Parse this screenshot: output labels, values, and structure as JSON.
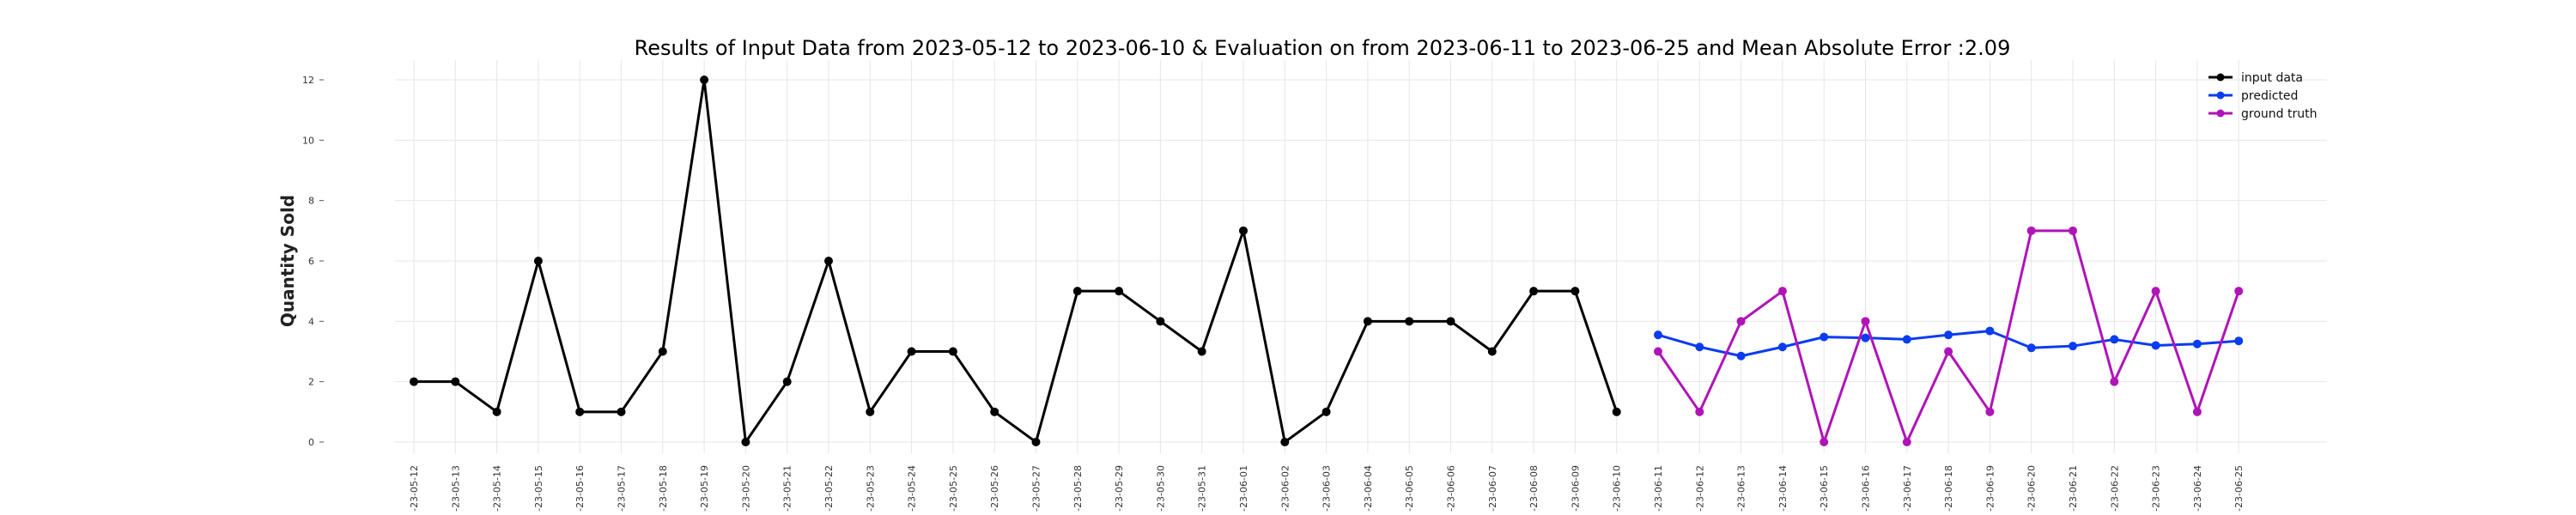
{
  "chart_data": {
    "type": "line",
    "title": "Results of Input Data from 2023-05-12 to 2023-06-10 & Evaluation on from 2023-06-11 to 2023-06-25 and Mean Absolute Error  :2.09",
    "ylabel": "Quantity Sold",
    "xlabel": "",
    "ylim": [
      0,
      12
    ],
    "yticks": [
      0,
      2,
      4,
      6,
      8,
      10,
      12
    ],
    "grid": true,
    "legend_position": "top-right",
    "x": [
      "2023-05-12",
      "2023-05-13",
      "2023-05-14",
      "2023-05-15",
      "2023-05-16",
      "2023-05-17",
      "2023-05-18",
      "2023-05-19",
      "2023-05-20",
      "2023-05-21",
      "2023-05-22",
      "2023-05-23",
      "2023-05-24",
      "2023-05-25",
      "2023-05-26",
      "2023-05-27",
      "2023-05-28",
      "2023-05-29",
      "2023-05-30",
      "2023-05-31",
      "2023-06-01",
      "2023-06-02",
      "2023-06-03",
      "2023-06-04",
      "2023-06-05",
      "2023-06-06",
      "2023-06-07",
      "2023-06-08",
      "2023-06-09",
      "2023-06-10",
      "2023-06-11",
      "2023-06-12",
      "2023-06-13",
      "2023-06-14",
      "2023-06-15",
      "2023-06-16",
      "2023-06-17",
      "2023-06-18",
      "2023-06-19",
      "2023-06-20",
      "2023-06-21",
      "2023-06-22",
      "2023-06-23",
      "2023-06-24",
      "2023-06-25"
    ],
    "xtick_labels": [
      "-23-05-12",
      "-23-05-13",
      "-23-05-14",
      "-23-05-15",
      "-23-05-16",
      "-23-05-17",
      "-23-05-18",
      "-23-05-19",
      "-23-05-20",
      "-23-05-21",
      "-23-05-22",
      "-23-05-23",
      "-23-05-24",
      "-23-05-25",
      "-23-05-26",
      "-23-05-27",
      "-23-05-28",
      "-23-05-29",
      "-23-05-30",
      "-23-05-31",
      "-23-06-01",
      "-23-06-02",
      "-23-06-03",
      "-23-06-04",
      "-23-06-05",
      "-23-06-06",
      "-23-06-07",
      "-23-06-08",
      "-23-06-09",
      "-23-06-10",
      "-23-06-11",
      "-23-06-12",
      "-23-06-13",
      "-23-06-14",
      "-23-06-15",
      "-23-06-16",
      "-23-06-17",
      "-23-06-18",
      "-23-06-19",
      "-23-06-20",
      "-23-06-21",
      "-23-06-22",
      "-23-06-23",
      "-23-06-24",
      "-23-06-25"
    ],
    "series": [
      {
        "name": "input data",
        "color": "#000000",
        "x": [
          "2023-05-12",
          "2023-05-13",
          "2023-05-14",
          "2023-05-15",
          "2023-05-16",
          "2023-05-17",
          "2023-05-18",
          "2023-05-19",
          "2023-05-20",
          "2023-05-21",
          "2023-05-22",
          "2023-05-23",
          "2023-05-24",
          "2023-05-25",
          "2023-05-26",
          "2023-05-27",
          "2023-05-28",
          "2023-05-29",
          "2023-05-30",
          "2023-05-31",
          "2023-06-01",
          "2023-06-02",
          "2023-06-03",
          "2023-06-04",
          "2023-06-05",
          "2023-06-06",
          "2023-06-07",
          "2023-06-08",
          "2023-06-09",
          "2023-06-10"
        ],
        "values": [
          2,
          2,
          1,
          6,
          1,
          1,
          3,
          12,
          0,
          2,
          6,
          1,
          3,
          3,
          1,
          0,
          5,
          5,
          4,
          3,
          7,
          0,
          1,
          4,
          4,
          4,
          3,
          5,
          5,
          1
        ]
      },
      {
        "name": "predicted",
        "color": "#0a3cf0",
        "x": [
          "2023-06-11",
          "2023-06-12",
          "2023-06-13",
          "2023-06-14",
          "2023-06-15",
          "2023-06-16",
          "2023-06-17",
          "2023-06-18",
          "2023-06-19",
          "2023-06-20",
          "2023-06-21",
          "2023-06-22",
          "2023-06-23",
          "2023-06-24",
          "2023-06-25"
        ],
        "values": [
          3.55,
          3.15,
          2.85,
          3.15,
          3.48,
          3.45,
          3.4,
          3.55,
          3.68,
          3.12,
          3.18,
          3.4,
          3.2,
          3.25,
          3.35
        ]
      },
      {
        "name": "ground truth",
        "color": "#b013b8",
        "x": [
          "2023-06-11",
          "2023-06-12",
          "2023-06-13",
          "2023-06-14",
          "2023-06-15",
          "2023-06-16",
          "2023-06-17",
          "2023-06-18",
          "2023-06-19",
          "2023-06-20",
          "2023-06-21",
          "2023-06-22",
          "2023-06-23",
          "2023-06-24",
          "2023-06-25"
        ],
        "values": [
          3,
          1,
          4,
          5,
          0,
          4,
          0,
          3,
          1,
          7,
          7,
          2,
          5,
          1,
          5
        ]
      }
    ]
  }
}
